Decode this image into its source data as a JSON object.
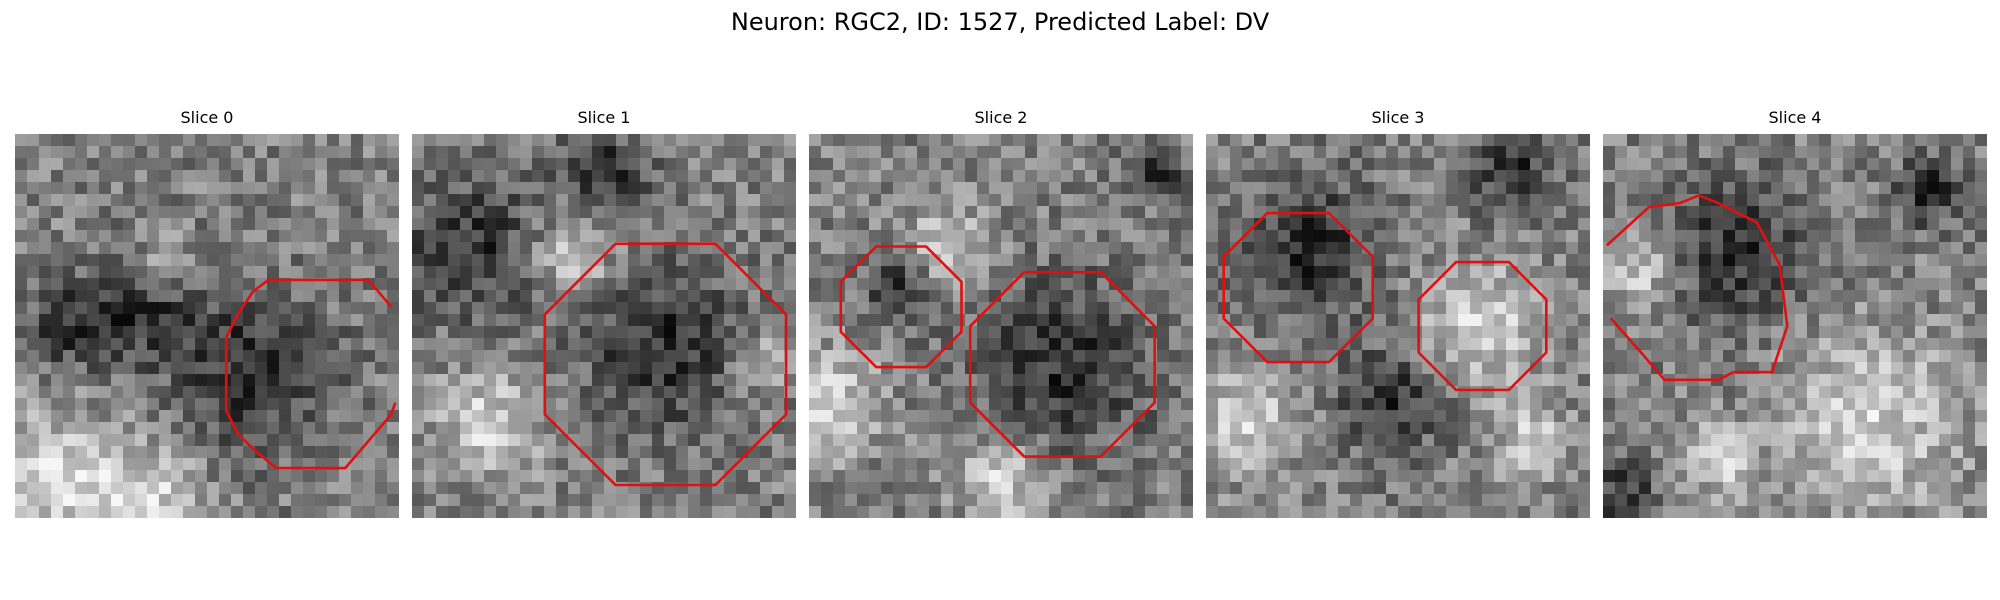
{
  "figure": {
    "title": "Neuron: RGC2, ID: 1527, Predicted Label: DV"
  },
  "panels": [
    {
      "title": "Slice 0"
    },
    {
      "title": "Slice 1"
    },
    {
      "title": "Slice 2"
    },
    {
      "title": "Slice 3"
    },
    {
      "title": "Slice 4"
    }
  ],
  "colors": {
    "contour": "#e01010",
    "background": "#ffffff"
  }
}
